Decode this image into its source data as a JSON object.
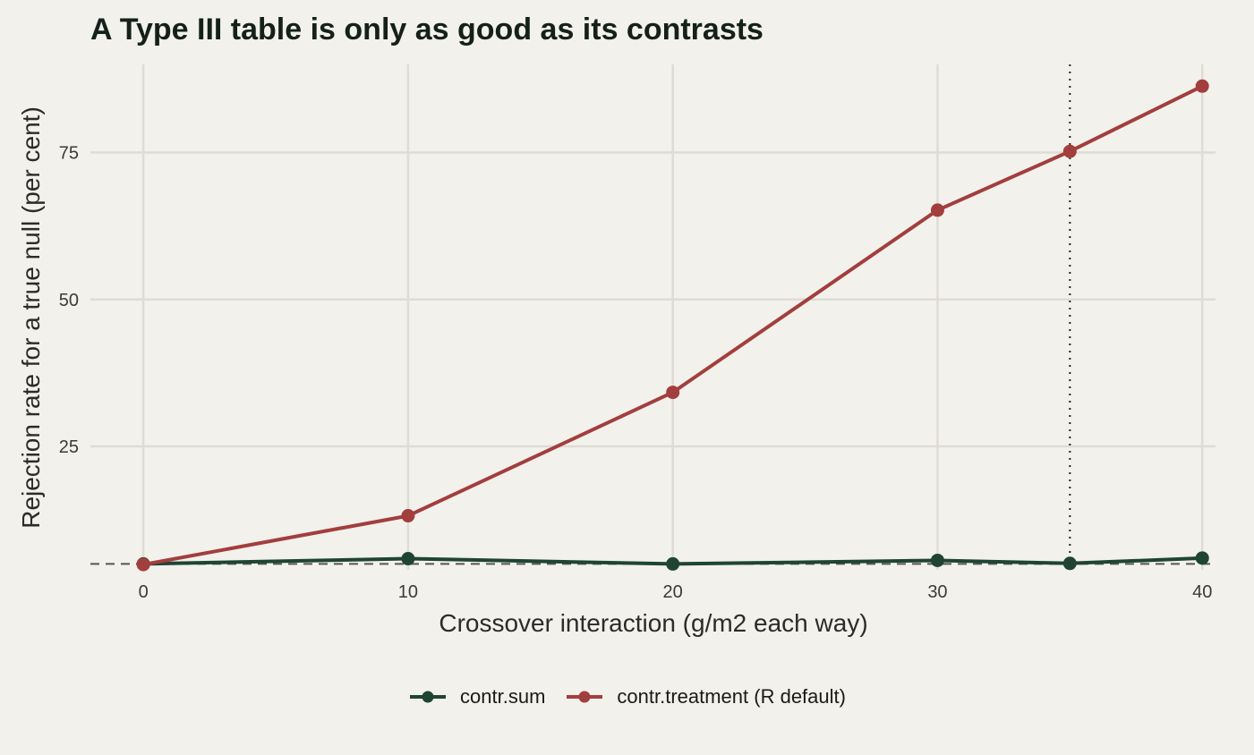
{
  "chart_data": {
    "type": "line",
    "title": "A Type III table is only as good as its contrasts",
    "xlabel": "Crossover interaction (g/m2 each way)",
    "ylabel": "Rejection rate for a true null (per cent)",
    "x": [
      0,
      10,
      20,
      30,
      35,
      40
    ],
    "xticks": [
      0,
      10,
      20,
      30,
      40
    ],
    "yticks": [
      25,
      50,
      75
    ],
    "xlim": [
      -2,
      40.5
    ],
    "ylim": [
      4,
      90
    ],
    "grid": true,
    "legend_position": "bottom",
    "reference_lines": {
      "horizontal_dashed_y": 5,
      "vertical_dotted_x": 35
    },
    "series": [
      {
        "name": "contr.sum",
        "color": "#1f4434",
        "values": [
          5.0,
          5.9,
          5.0,
          5.6,
          5.1,
          6.0
        ]
      },
      {
        "name": "contr.treatment (R default)",
        "color": "#a33e3e",
        "values": [
          4.9,
          13.2,
          34.2,
          65.2,
          75.2,
          86.3
        ]
      }
    ]
  }
}
